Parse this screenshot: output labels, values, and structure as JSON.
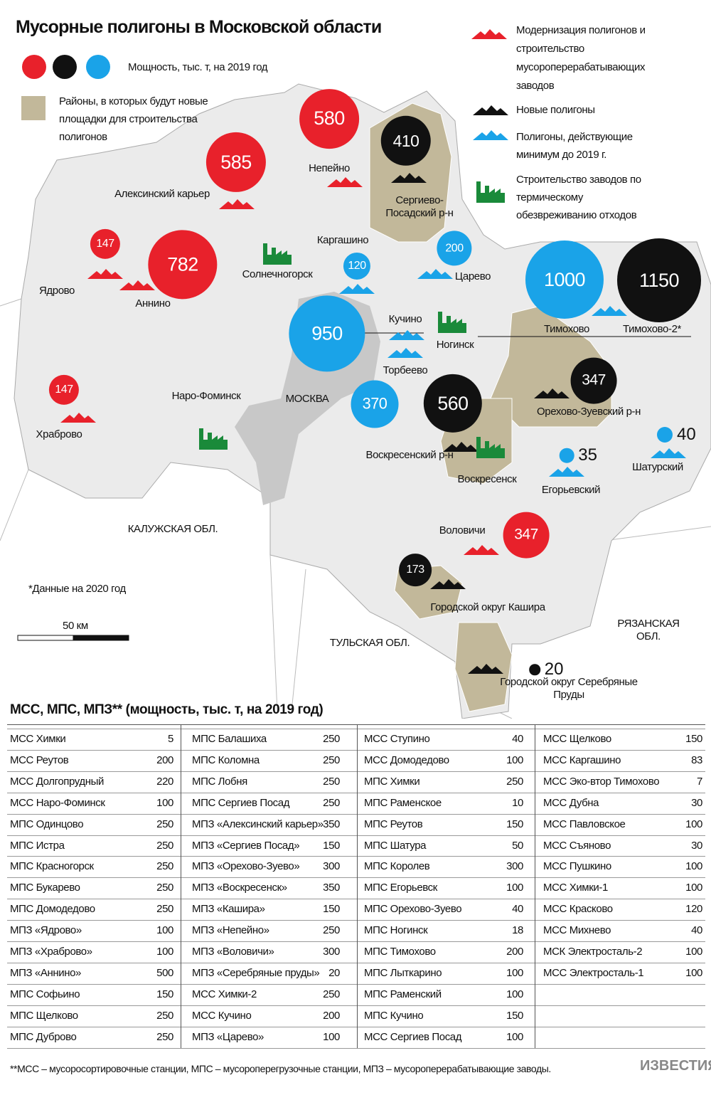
{
  "title": "Мусорные полигоны в Московской области",
  "legend": {
    "capacity": "Мощность, тыс. т, на 2019 год",
    "districts": "Районы, в которых будут новые площадки для строительства полигонов",
    "modernization": "Модернизация полигонов и строительство мусороперерабатывающих заводов",
    "new_landfills": "Новые полигоны",
    "active": "Полигоны, действующие минимум до 2019 г.",
    "plants": "Строительство заводов по термическому обезвреживанию отходов"
  },
  "map": {
    "bubbles": [
      {
        "value": 580,
        "color": "#e8212b"
      },
      {
        "value": 410,
        "color": "#111111"
      },
      {
        "value": 585,
        "color": "#e8212b"
      },
      {
        "value": 147,
        "color": "#e8212b"
      },
      {
        "value": 782,
        "color": "#e8212b"
      },
      {
        "value": 120,
        "color": "#1aa3e8"
      },
      {
        "value": 200,
        "color": "#1aa3e8"
      },
      {
        "value": 1000,
        "color": "#1aa3e8"
      },
      {
        "value": 1150,
        "color": "#111111"
      },
      {
        "value": 950,
        "color": "#1aa3e8"
      },
      {
        "value": 347,
        "color": "#111111"
      },
      {
        "value": 370,
        "color": "#1aa3e8"
      },
      {
        "value": 560,
        "color": "#111111"
      },
      {
        "value": 147,
        "color": "#e8212b"
      },
      {
        "value": 347,
        "color": "#e8212b"
      },
      {
        "value": 173,
        "color": "#111111"
      },
      {
        "value": 35,
        "color": "#1aa3e8"
      },
      {
        "value": 40,
        "color": "#1aa3e8"
      },
      {
        "value": 20,
        "color": "#111111"
      }
    ],
    "places": [
      "Непейно",
      "Алексинский карьер",
      "Сергиево-\nПосадский р-н",
      "Каргашино",
      "Царево",
      "Солнечногорск",
      "Ядрово",
      "Аннино",
      "Кучино",
      "Ногинск",
      "Тимохово",
      "Тимохово-2*",
      "Торбеево",
      "Орехово-Зуевский р-н",
      "Наро-Фоминск",
      "МОСКВА",
      "Храброво",
      "Воскресенский р-н",
      "Воскресенск",
      "Шатурский",
      "Егорьевский",
      "КАЛУЖСКАЯ ОБЛ.",
      "Воловичи",
      "Городской округ Кашира",
      "РЯЗАНСКАЯ  ОБЛ.",
      "ТУЛЬСКАЯ ОБЛ.",
      "Городской округ Серебряные Пруды"
    ],
    "note": "*Данные на 2020 год",
    "scale": "50 км"
  },
  "table": {
    "title": "МСС, МПС, МПЗ** (мощность, тыс. т, на 2019 год)",
    "columns": [
      [
        {
          "name": "МСС Химки",
          "value": 5
        },
        {
          "name": "МСС Реутов",
          "value": 200
        },
        {
          "name": "МСС Долгопрудный",
          "value": 220
        },
        {
          "name": "МСС Наро-Фоминск",
          "value": 100
        },
        {
          "name": "МПС Одинцово",
          "value": 250
        },
        {
          "name": "МПС Истра",
          "value": 250
        },
        {
          "name": "МПС Красногорск",
          "value": 250
        },
        {
          "name": "МПС Букарево",
          "value": 250
        },
        {
          "name": "МПС Домодедово",
          "value": 250
        },
        {
          "name": "МПЗ «Ядрово»",
          "value": 100
        },
        {
          "name": "МПЗ «Храброво»",
          "value": 100
        },
        {
          "name": "МПЗ «Аннино»",
          "value": 500
        },
        {
          "name": "МПС Софьино",
          "value": 150
        },
        {
          "name": "МПС Щелково",
          "value": 250
        },
        {
          "name": "МПС Дуброво",
          "value": 250
        }
      ],
      [
        {
          "name": "МПС Балашиха",
          "value": 250
        },
        {
          "name": "МПС Коломна",
          "value": 250
        },
        {
          "name": "МПС Лобня",
          "value": 250
        },
        {
          "name": "МПС Сергиев Посад",
          "value": 250
        },
        {
          "name": "МПЗ «Алексинский карьер»",
          "value": 350
        },
        {
          "name": "МПЗ «Сергиев Посад»",
          "value": 150
        },
        {
          "name": "МПЗ «Орехово-Зуево»",
          "value": 300
        },
        {
          "name": "МПЗ «Воскресенск»",
          "value": 350
        },
        {
          "name": "МПЗ «Кашира»",
          "value": 150
        },
        {
          "name": "МПЗ «Непейно»",
          "value": 250
        },
        {
          "name": "МПЗ «Воловичи»",
          "value": 300
        },
        {
          "name": "МПЗ «Серебряные пруды»",
          "value": 20
        },
        {
          "name": "МСС Химки-2",
          "value": 250
        },
        {
          "name": "МСС Кучино",
          "value": 200
        },
        {
          "name": "МПЗ «Царево»",
          "value": 100
        }
      ],
      [
        {
          "name": "МСС Ступино",
          "value": 40
        },
        {
          "name": "МСС Домодедово",
          "value": 100
        },
        {
          "name": "МПС Химки",
          "value": 250
        },
        {
          "name": "МПС Раменское",
          "value": 10
        },
        {
          "name": "МПС Реутов",
          "value": 150
        },
        {
          "name": "МПС Шатура",
          "value": 50
        },
        {
          "name": "МПС Королев",
          "value": 300
        },
        {
          "name": "МПС Егорьевск",
          "value": 100
        },
        {
          "name": "МПС Орехово-Зуево",
          "value": 40
        },
        {
          "name": "МПС Ногинск",
          "value": 18
        },
        {
          "name": "МПС Тимохово",
          "value": 200
        },
        {
          "name": "МПС Лыткарино",
          "value": 100
        },
        {
          "name": "МПС Раменский",
          "value": 100
        },
        {
          "name": "МПС Кучино",
          "value": 150
        },
        {
          "name": "МСС Сергиев Посад",
          "value": 100
        }
      ],
      [
        {
          "name": "МСС Щелково",
          "value": 150
        },
        {
          "name": "МСС Каргашино",
          "value": 83
        },
        {
          "name": "МСС Эко-втор Тимохово",
          "value": 7
        },
        {
          "name": "МСС Дубна",
          "value": 30
        },
        {
          "name": "МСС Павловское",
          "value": 100
        },
        {
          "name": "МСС Съяново",
          "value": 30
        },
        {
          "name": "МСС Пушкино",
          "value": 100
        },
        {
          "name": "МСС Химки-1",
          "value": 100
        },
        {
          "name": "МСС Красково",
          "value": 120
        },
        {
          "name": "МСС Михнево",
          "value": 40
        },
        {
          "name": "МСК Электросталь-2",
          "value": 100
        },
        {
          "name": "МСС Электросталь-1",
          "value": 100
        }
      ]
    ]
  },
  "footnote": "**МСС – мусоросортировочные станции, МПС – мусороперегрузочные станции, МПЗ – мусороперерабатывающие заводы.",
  "logo": "ИЗВЕСТИЯ"
}
